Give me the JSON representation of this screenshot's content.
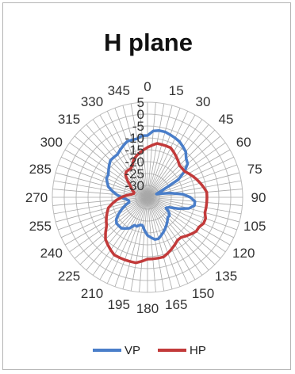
{
  "chart_data": {
    "type": "radar",
    "title": "H plane",
    "angle_labels": [
      "0",
      "15",
      "30",
      "45",
      "60",
      "75",
      "90",
      "105",
      "120",
      "135",
      "150",
      "165",
      "180",
      "195",
      "210",
      "225",
      "240",
      "255",
      "270",
      "285",
      "300",
      "315",
      "330",
      "345"
    ],
    "radial_labels": [
      "5",
      "0",
      "-5",
      "-10",
      "-15",
      "-20",
      "-25",
      "-30"
    ],
    "rlim": [
      -35,
      5
    ],
    "angle_step_deg": 5,
    "grid": true,
    "legend": "bottom",
    "series": [
      {
        "name": "VP",
        "color": "#4a7ec9",
        "values": [
          -9,
          -7,
          -6.5,
          -6.5,
          -7,
          -7.5,
          -8,
          -9,
          -10,
          -12,
          -13,
          -16,
          -20,
          -28,
          -31,
          -29,
          -25,
          -20,
          -17,
          -15,
          -15,
          -17,
          -21,
          -25,
          -26,
          -24,
          -23,
          -23,
          -22,
          -21,
          -20,
          -19,
          -18,
          -17,
          -17,
          -18,
          -19,
          -21,
          -23,
          -23,
          -22,
          -22,
          -20,
          -19,
          -18,
          -18,
          -18,
          -19,
          -21,
          -23,
          -25,
          -27,
          -27,
          -26,
          -24,
          -22,
          -20,
          -18,
          -17,
          -16,
          -16,
          -15,
          -14,
          -13,
          -13,
          -13,
          -12,
          -11,
          -10,
          -10,
          -10,
          -9
        ]
      },
      {
        "name": "HP",
        "color": "#c23a3a",
        "values": [
          -14,
          -13,
          -12,
          -12,
          -12,
          -12,
          -13,
          -14,
          -15,
          -16,
          -16,
          -16,
          -15,
          -14,
          -13,
          -12,
          -11,
          -10,
          -10,
          -10,
          -10,
          -10,
          -9,
          -9,
          -10,
          -10,
          -11,
          -12,
          -13,
          -13,
          -12,
          -11,
          -10,
          -9,
          -9,
          -9,
          -9,
          -8,
          -7,
          -7,
          -7,
          -7,
          -7,
          -8,
          -9,
          -10,
          -12,
          -14,
          -15,
          -16,
          -17,
          -18,
          -20,
          -22,
          -24,
          -26,
          -28,
          -29,
          -29,
          -28,
          -27,
          -26,
          -24,
          -22,
          -21,
          -21,
          -21,
          -20,
          -18,
          -17,
          -16,
          -15
        ]
      }
    ]
  }
}
